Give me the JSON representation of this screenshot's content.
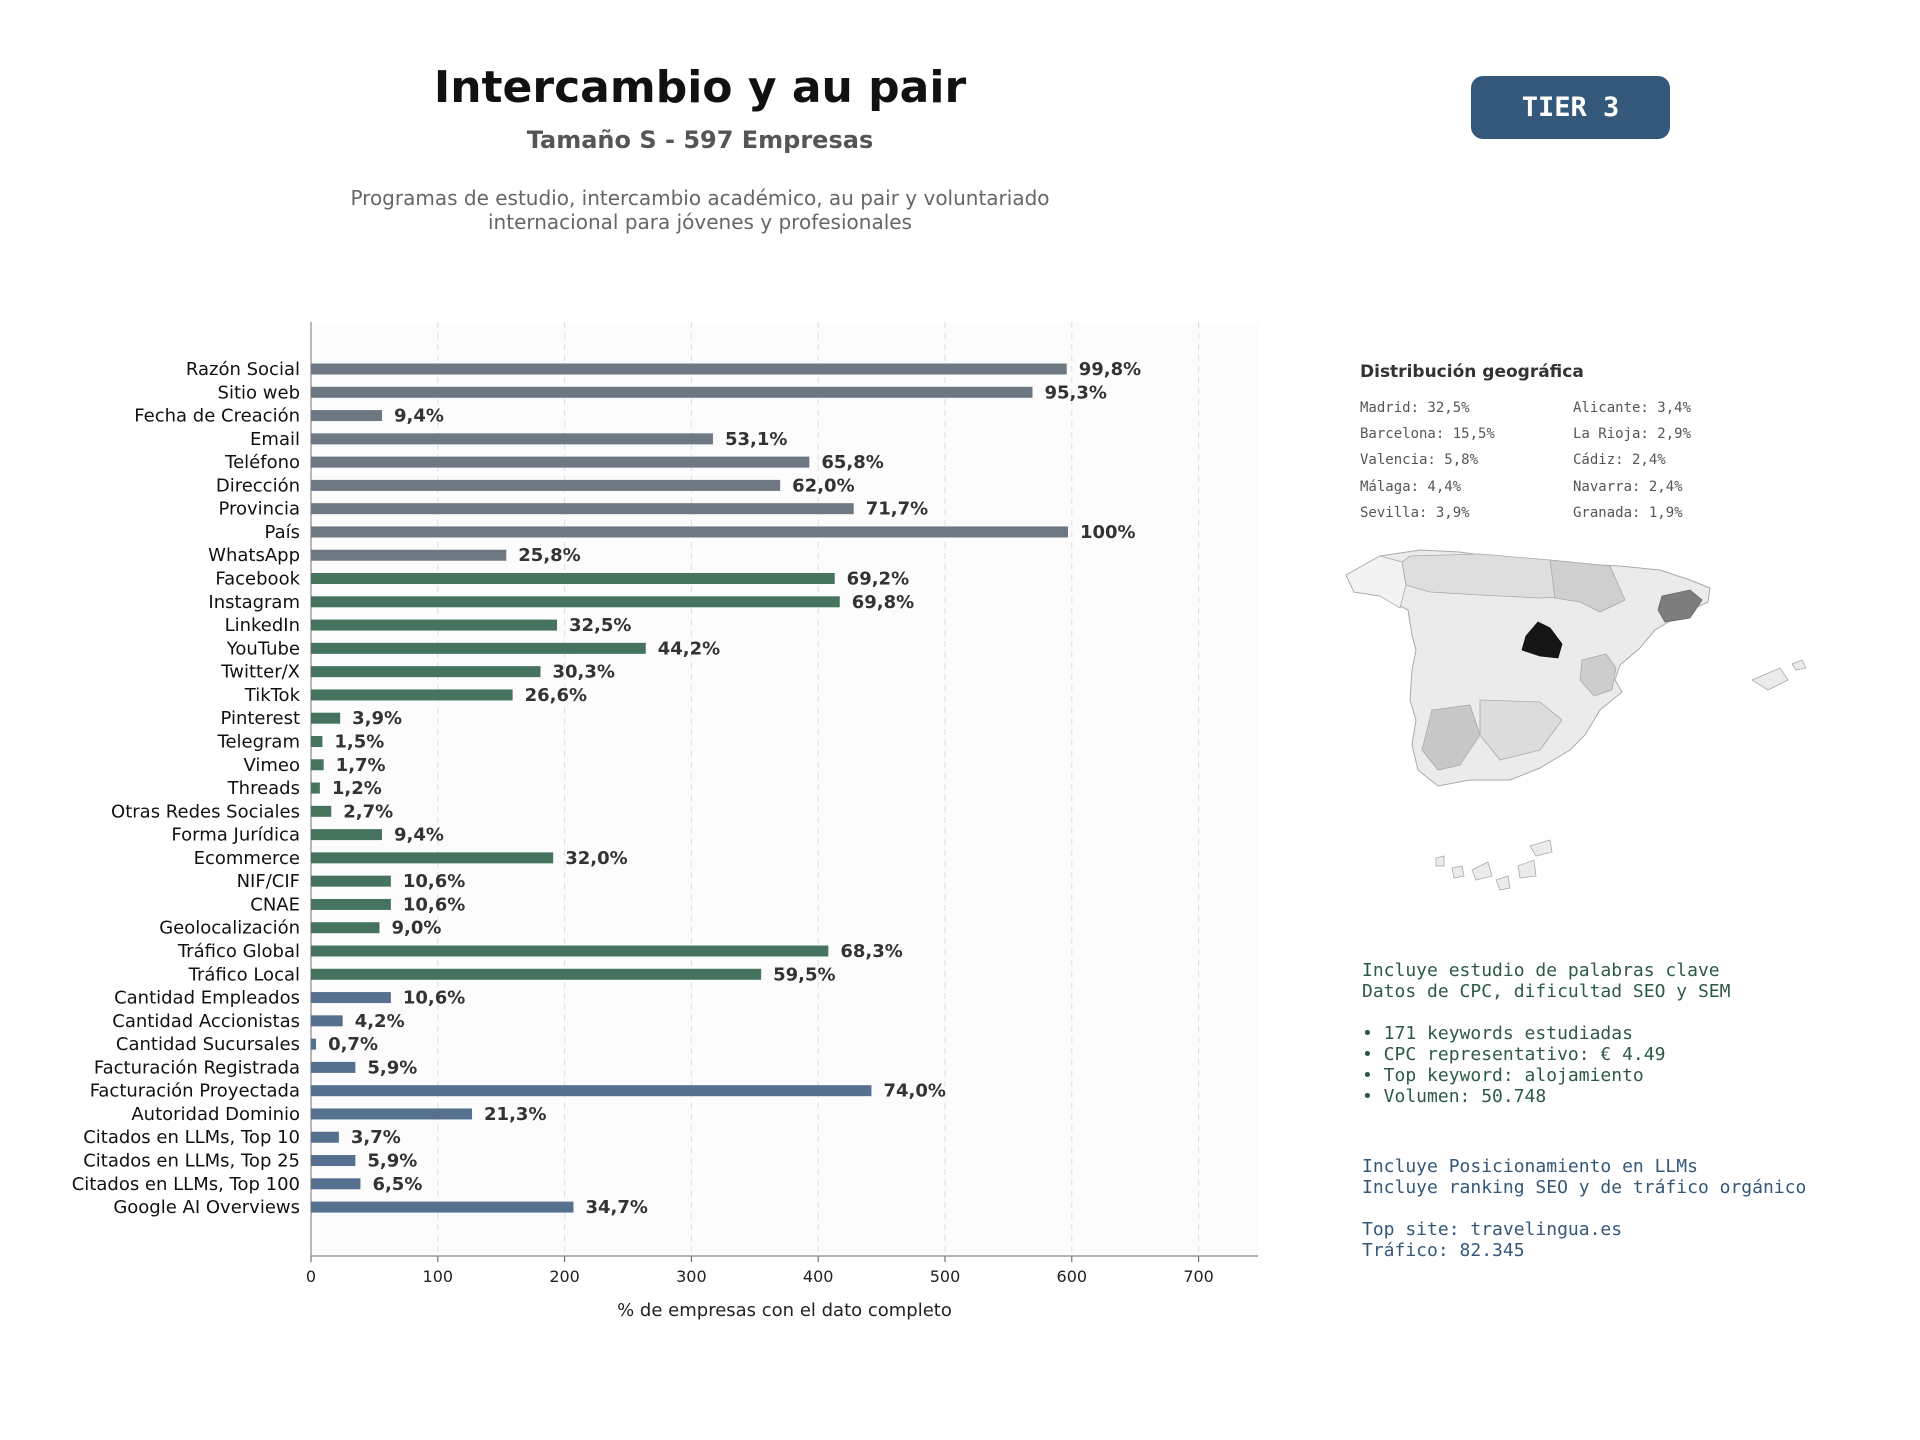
{
  "header": {
    "title": "Intercambio y au pair",
    "subtitle": "Tamaño S - 597 Empresas",
    "description_line1": "Programas de estudio, intercambio académico, au pair y voluntariado",
    "description_line2": "internacional para jóvenes y profesionales",
    "tier_badge": "TIER 3"
  },
  "colors": {
    "gray": "#6d7883",
    "green": "#45735e",
    "blue": "#56718f",
    "tier_bg": "#34587a"
  },
  "chart_data": {
    "type": "bar",
    "orientation": "horizontal",
    "xlabel": "% de empresas con el dato completo",
    "xlim": [
      0,
      750
    ],
    "xticks": [
      0,
      100,
      200,
      300,
      400,
      500,
      600,
      700
    ],
    "grid": "vertical dashed",
    "categories": [
      "Razón Social",
      "Sitio web",
      "Fecha de Creación",
      "Email",
      "Teléfono",
      "Dirección",
      "Provincia",
      "País",
      "WhatsApp",
      "Facebook",
      "Instagram",
      "LinkedIn",
      "YouTube",
      "Twitter/X",
      "TikTok",
      "Pinterest",
      "Telegram",
      "Vimeo",
      "Threads",
      "Otras Redes Sociales",
      "Forma Jurídica",
      "Ecommerce",
      "NIF/CIF",
      "CNAE",
      "Geolocalización",
      "Tráfico Global",
      "Tráfico Local",
      "Cantidad Empleados",
      "Cantidad Accionistas",
      "Cantidad Sucursales",
      "Facturación Registrada",
      "Facturación Proyectada",
      "Autoridad Dominio",
      "Citados en LLMs, Top 10",
      "Citados en LLMs, Top 25",
      "Citados en LLMs, Top 100",
      "Google AI Overviews"
    ],
    "values": [
      596,
      569,
      56,
      317,
      393,
      370,
      428,
      597,
      154,
      413,
      417,
      194,
      264,
      181,
      159,
      23,
      9,
      10,
      7,
      16,
      56,
      191,
      63,
      63,
      54,
      408,
      355,
      63,
      25,
      4,
      35,
      442,
      127,
      22,
      35,
      39,
      207
    ],
    "labels": [
      "99,8%",
      "95,3%",
      "9,4%",
      "53,1%",
      "65,8%",
      "62,0%",
      "71,7%",
      "100%",
      "25,8%",
      "69,2%",
      "69,8%",
      "32,5%",
      "44,2%",
      "30,3%",
      "26,6%",
      "3,9%",
      "1,5%",
      "1,7%",
      "1,2%",
      "2,7%",
      "9,4%",
      "32,0%",
      "10,6%",
      "10,6%",
      "9,0%",
      "68,3%",
      "59,5%",
      "10,6%",
      "4,2%",
      "0,7%",
      "5,9%",
      "74,0%",
      "21,3%",
      "3,7%",
      "5,9%",
      "6,5%",
      "34,7%"
    ],
    "groups": [
      "gray",
      "gray",
      "gray",
      "gray",
      "gray",
      "gray",
      "gray",
      "gray",
      "gray",
      "green",
      "green",
      "green",
      "green",
      "green",
      "green",
      "green",
      "green",
      "green",
      "green",
      "green",
      "green",
      "green",
      "green",
      "green",
      "green",
      "green",
      "green",
      "blue",
      "blue",
      "blue",
      "blue",
      "blue",
      "blue",
      "blue",
      "blue",
      "blue",
      "blue"
    ]
  },
  "geo": {
    "title": "Distribución geográfica",
    "left": [
      "Madrid: 32,5%",
      "Barcelona: 15,5%",
      "Valencia: 5,8%",
      "Málaga: 4,4%",
      "Sevilla: 3,9%"
    ],
    "right": [
      "Alicante: 3,4%",
      "La Rioja: 2,9%",
      "Cádiz: 2,4%",
      "Navarra: 2,4%",
      "Granada: 1,9%"
    ]
  },
  "seo": {
    "line1": "Incluye estudio de palabras clave",
    "line2": "Datos de CPC, dificultad SEO y SEM",
    "bullets": [
      "• 171 keywords estudiadas",
      "• CPC representativo: € 4.49",
      "• Top keyword: alojamiento",
      "• Volumen: 50.748"
    ]
  },
  "llm": {
    "line1": "Incluye Posicionamiento en LLMs",
    "line2": "Incluye ranking SEO y de tráfico orgánico",
    "top_site": "Top site: travelingua.es",
    "traffic": "Tráfico: 82.345"
  }
}
